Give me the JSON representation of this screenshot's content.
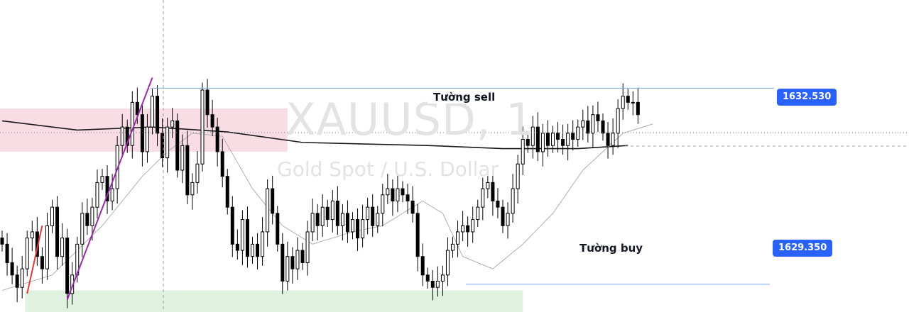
{
  "watermark": {
    "symbol": "XAUUSD, 1",
    "description": "Gold Spot / U.S. Dollar"
  },
  "levels": {
    "sell": {
      "label": "Tường sell",
      "price": "1632.530",
      "value": 1632.53
    },
    "buy": {
      "label": "Tường buy",
      "price": "1629.350",
      "value": 1629.35
    }
  },
  "colors": {
    "candle": "#000000",
    "level_line": "#7ea7e8",
    "price_badge": "#2962ff",
    "supply_zone": "#f8d7e0",
    "demand_zone": "#d9efd9",
    "ma_slow": "#1a1a1a",
    "ma_fast": "#b0b0b0",
    "trendline_purple": "#9c27b0",
    "trendline_red": "#e53935",
    "crosshair": "#9aa0a6"
  },
  "chart_data": {
    "type": "candlestick",
    "instrument": "XAUUSD",
    "timeframe": "1",
    "ylim": [
      1628.9,
      1633.5
    ],
    "x_count": 128,
    "zones": [
      {
        "name": "supply",
        "x_range": [
          0,
          57
        ],
        "y_range": [
          1631.5,
          1632.2
        ]
      },
      {
        "name": "demand",
        "x_range": [
          5,
          104
        ],
        "y_range": [
          1628.9,
          1629.25
        ]
      }
    ],
    "trendlines": [
      {
        "color": "purple",
        "from": [
          13,
          1629.1
        ],
        "to": [
          30,
          1632.7
        ]
      },
      {
        "color": "red",
        "from": [
          5,
          1629.2
        ],
        "to": [
          8,
          1630.3
        ]
      }
    ],
    "moving_averages": [
      {
        "name": "slow",
        "points": [
          [
            0,
            1632.0
          ],
          [
            15,
            1631.85
          ],
          [
            30,
            1631.9
          ],
          [
            45,
            1631.82
          ],
          [
            60,
            1631.65
          ],
          [
            85,
            1631.6
          ],
          [
            100,
            1631.55
          ],
          [
            115,
            1631.55
          ],
          [
            125,
            1631.6
          ]
        ]
      },
      {
        "name": "fast",
        "points": [
          [
            0,
            1629.25
          ],
          [
            10,
            1629.5
          ],
          [
            20,
            1630.3
          ],
          [
            28,
            1631.1
          ],
          [
            33,
            1631.5
          ],
          [
            38,
            1631.8
          ],
          [
            44,
            1631.75
          ],
          [
            50,
            1630.9
          ],
          [
            56,
            1630.3
          ],
          [
            62,
            1630.0
          ],
          [
            70,
            1630.2
          ],
          [
            76,
            1630.3
          ],
          [
            84,
            1630.7
          ],
          [
            88,
            1630.5
          ],
          [
            92,
            1629.8
          ],
          [
            98,
            1629.6
          ],
          [
            104,
            1630.0
          ],
          [
            110,
            1630.5
          ],
          [
            116,
            1631.2
          ],
          [
            124,
            1631.8
          ],
          [
            130,
            1631.95
          ]
        ]
      }
    ],
    "close_series": [
      1630.0,
      1629.7,
      1629.5,
      1629.3,
      1629.6,
      1630.1,
      1630.2,
      1629.8,
      1629.6,
      1630.3,
      1630.6,
      1629.8,
      1630.1,
      1629.2,
      1629.5,
      1630.0,
      1630.5,
      1630.3,
      1630.6,
      1631.0,
      1631.1,
      1630.7,
      1630.9,
      1631.6,
      1631.9,
      1631.6,
      1632.3,
      1632.1,
      1631.5,
      1631.9,
      1632.4,
      1631.8,
      1631.4,
      1631.9,
      1632.0,
      1631.2,
      1631.6,
      1630.8,
      1631.0,
      1631.3,
      1632.5,
      1632.1,
      1631.9,
      1631.5,
      1631.1,
      1630.6,
      1630.0,
      1629.9,
      1630.4,
      1629.8,
      1630.0,
      1629.8,
      1630.2,
      1630.9,
      1630.5,
      1630.0,
      1629.4,
      1629.8,
      1629.6,
      1629.9,
      1629.7,
      1630.2,
      1630.5,
      1630.3,
      1630.6,
      1630.4,
      1630.7,
      1630.3,
      1630.5,
      1630.2,
      1630.4,
      1630.1,
      1630.4,
      1630.6,
      1630.3,
      1630.5,
      1630.8,
      1630.9,
      1630.7,
      1630.9,
      1630.8,
      1630.7,
      1630.5,
      1629.8,
      1629.5,
      1629.4,
      1629.3,
      1629.4,
      1629.5,
      1629.9,
      1630.0,
      1630.2,
      1630.3,
      1630.2,
      1630.4,
      1630.6,
      1630.9,
      1631.0,
      1630.7,
      1630.6,
      1630.3,
      1630.5,
      1630.9,
      1631.3,
      1631.7,
      1631.6,
      1631.9,
      1631.5,
      1631.8,
      1631.6,
      1631.8,
      1631.7,
      1631.6,
      1631.8,
      1631.7,
      1631.9,
      1632.0,
      1631.8,
      1632.1,
      1632.0,
      1631.8,
      1631.6,
      1631.8,
      1632.2,
      1632.4,
      1632.3,
      1632.3,
      1632.1
    ],
    "crosshair": {
      "x": 29,
      "y": 1631.97
    }
  }
}
